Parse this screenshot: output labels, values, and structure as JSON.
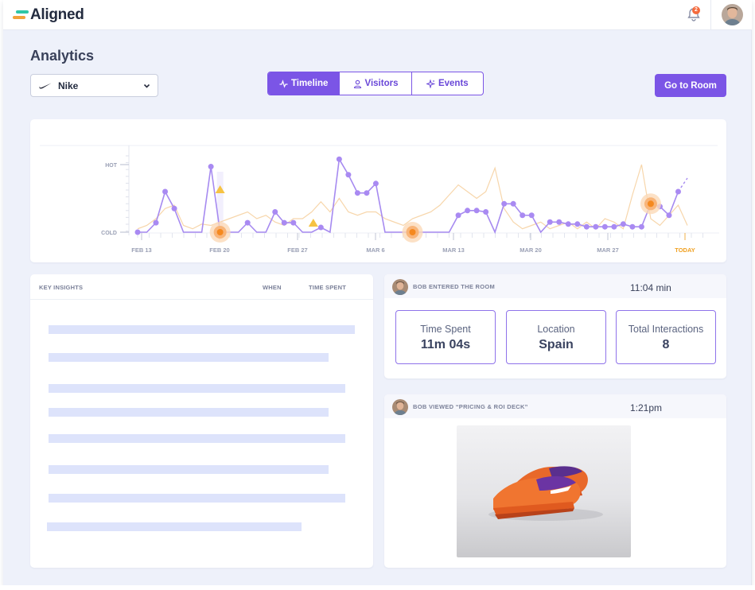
{
  "app": {
    "name": "Aligned",
    "notifications_count": "2"
  },
  "page": {
    "title": "Analytics"
  },
  "account_select": {
    "value": "Nike"
  },
  "view_tabs": [
    {
      "label": "Timeline",
      "icon": "pulse-icon",
      "active": true
    },
    {
      "label": "Visitors",
      "icon": "person-icon",
      "active": false
    },
    {
      "label": "Events",
      "icon": "sparkle-icon",
      "active": false
    }
  ],
  "actions": {
    "go_to_room": "Go to Room"
  },
  "chart_data": {
    "type": "line",
    "y_axis_labels": [
      "HOT",
      "COLD"
    ],
    "x_tick_labels": [
      "FEB 13",
      "FEB 20",
      "FEB 27",
      "MAR 6",
      "MAR 13",
      "MAR 20",
      "MAR 27",
      "TODAY"
    ],
    "series": [
      {
        "values": [
          0,
          0,
          0.14,
          0.6,
          0.35,
          0,
          0,
          0,
          0.97,
          0,
          0,
          0,
          0.14,
          0,
          0,
          0.3,
          0.14,
          0.14,
          0,
          0,
          0.07,
          0,
          1.08,
          0.85,
          0.58,
          0.58,
          0.72,
          0,
          0,
          0,
          0,
          0,
          0,
          0,
          0,
          0.25,
          0.32,
          0.32,
          0.3,
          0,
          0.42,
          0.42,
          0.25,
          0.25,
          0,
          0.15,
          0.15,
          0.12,
          0.12,
          0.08,
          0.08,
          0.08,
          0.08,
          0.12,
          0.08,
          0.08,
          0.42,
          0.38,
          0.25,
          0.6,
          0.8
        ]
      },
      {
        "values": [
          0.05,
          0.1,
          0.2,
          0.35,
          0.4,
          0.1,
          0.05,
          0.12,
          0.1,
          0.15,
          0.2,
          0.25,
          0.3,
          0.2,
          0.25,
          0.15,
          0.1,
          0.2,
          0.2,
          0.3,
          0.45,
          0.3,
          0.5,
          0.3,
          0.25,
          0.3,
          0.3,
          0.2,
          0.15,
          0.1,
          0.2,
          0.25,
          0.3,
          0.4,
          0.55,
          0.7,
          0.6,
          0.5,
          0.6,
          0.95,
          0.35,
          0.15,
          0.05,
          0.1,
          0.15,
          0.05,
          0.1,
          0.15,
          0.05,
          0.15,
          0.05,
          0.2,
          0.15,
          0.05,
          0.55,
          1.0,
          0.2,
          0.1,
          0.25,
          0.4,
          0.1
        ]
      }
    ],
    "highlights": [
      9,
      30,
      56
    ],
    "warnings": [
      9,
      19
    ],
    "grid": false
  },
  "insights": {
    "columns": [
      "KEY INSIGHTS",
      "WHEN",
      "TIME SPENT"
    ]
  },
  "room_event": {
    "label": "BOB ENTERED THE ROOM",
    "time": "11:04 min",
    "stats": [
      {
        "label": "Time Spent",
        "value": "11m 04s"
      },
      {
        "label": "Location",
        "value": "Spain"
      },
      {
        "label": "Total Interactions",
        "value": "8"
      }
    ]
  },
  "view_event": {
    "label": "BOB VIEWED “PRICING & ROI DECK”",
    "time": "1:21pm"
  },
  "colors": {
    "accent": "#7b55e6",
    "line_primary": "#a68af0",
    "line_secondary": "#f6cf9c",
    "highlight": "#f5891f",
    "warning": "#f6c343",
    "placeholder_bar": "#dde3fb"
  }
}
